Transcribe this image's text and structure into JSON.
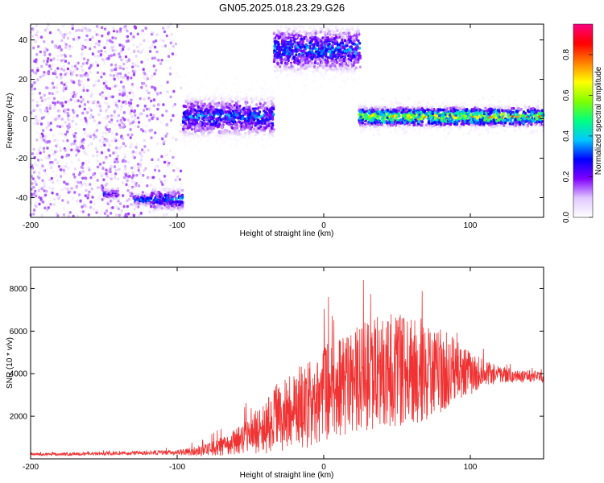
{
  "title": "GN05.2025.018.23.29.G26",
  "chart_data": [
    {
      "type": "heatmap",
      "xlabel": "Height of straight line (km)",
      "ylabel": "Frequency (Hz)",
      "xlim": [
        -200,
        150
      ],
      "ylim": [
        -50,
        48
      ],
      "xticks": [
        -200,
        -100,
        0,
        100
      ],
      "yticks": [
        -40,
        -20,
        0,
        20,
        40
      ],
      "colorbar": {
        "label": "Normalized spectral amplitude",
        "range": [
          0,
          0.95
        ],
        "ticks": [
          0.0,
          0.2,
          0.4,
          0.6,
          0.8
        ],
        "tick_labels": [
          "0.0",
          "0.2",
          "0.4",
          "0.6",
          "0.8"
        ],
        "colors": [
          "#ffffff",
          "#e0c8ff",
          "#8000ff",
          "#0000ff",
          "#00c8ff",
          "#00ff80",
          "#80ff00",
          "#ffff00",
          "#ff8000",
          "#ff0000",
          "#ff0080"
        ]
      },
      "features": [
        {
          "x_range": [
            -200,
            -97
          ],
          "freq": 0,
          "spread": 50,
          "amplitude": 0.12,
          "kind": "noise"
        },
        {
          "x_range": [
            -150,
            -140
          ],
          "freq": -38,
          "spread": 2,
          "amplitude": 0.22,
          "kind": "band"
        },
        {
          "x_range": [
            -130,
            -118
          ],
          "freq": -41,
          "spread": 2,
          "amplitude": 0.3,
          "kind": "band"
        },
        {
          "x_range": [
            -118,
            -96
          ],
          "freq": -41,
          "spread": 4,
          "amplitude": 0.28,
          "kind": "band"
        },
        {
          "x_range": [
            -96,
            -34
          ],
          "freq": 1,
          "spread": 7,
          "amplitude": 0.28,
          "kind": "band"
        },
        {
          "x_range": [
            -34,
            25
          ],
          "freq": 35,
          "spread": 8,
          "amplitude": 0.3,
          "kind": "band"
        },
        {
          "x_range": [
            24,
            150
          ],
          "freq": 1,
          "spread": 3.5,
          "amplitude": 0.55,
          "kind": "band"
        }
      ]
    },
    {
      "type": "line",
      "xlabel": "Height of straight line (km)",
      "ylabel": "SNR (10 * v/v)",
      "xlim": [
        -200,
        150
      ],
      "ylim": [
        0,
        9000
      ],
      "xticks": [
        -200,
        -100,
        0,
        100
      ],
      "yticks": [
        2000,
        4000,
        6000,
        8000
      ],
      "series_color": "#f03232",
      "envelope": {
        "x": [
          -200,
          -150,
          -100,
          -80,
          -60,
          -50,
          -40,
          -30,
          -20,
          -10,
          0,
          10,
          20,
          30,
          40,
          50,
          60,
          70,
          80,
          90,
          100,
          110,
          120,
          130,
          150
        ],
        "mean": [
          200,
          250,
          300,
          400,
          800,
          1100,
          1500,
          2000,
          2300,
          2600,
          3000,
          3300,
          3600,
          3900,
          4100,
          4200,
          4200,
          4200,
          4150,
          4100,
          4000,
          4000,
          3950,
          3900,
          3850
        ],
        "amp": [
          60,
          80,
          120,
          300,
          600,
          900,
          1300,
          1700,
          1900,
          2100,
          2300,
          2400,
          2500,
          2600,
          2700,
          2700,
          2600,
          2400,
          2000,
          1500,
          1000,
          650,
          400,
          300,
          250
        ]
      }
    }
  ]
}
